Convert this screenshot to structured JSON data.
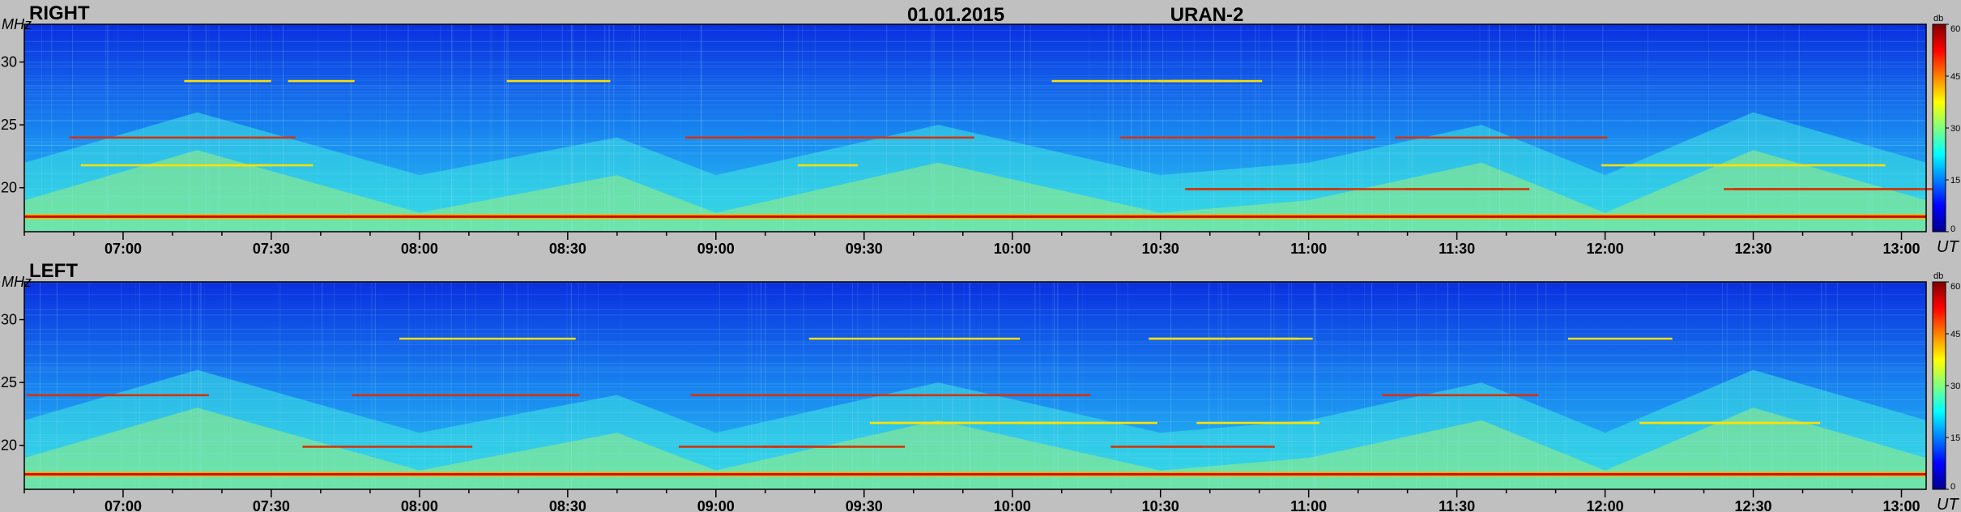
{
  "header": {
    "date": "01.01.2015",
    "instrument": "URAN-2"
  },
  "colors": {
    "background": "#c0c0c0",
    "colormap": [
      "#00008f",
      "#0000ff",
      "#0080ff",
      "#00ffff",
      "#80ff80",
      "#ffff00",
      "#ff8000",
      "#ff0000",
      "#800000"
    ]
  },
  "chart_data": [
    {
      "type": "heatmap",
      "title": "RIGHT",
      "ylabel": "MHz",
      "xlabel": "UT",
      "xlim": [
        "06:40",
        "13:05"
      ],
      "ylim": [
        16.5,
        33
      ],
      "x_ticks": [
        "07:00",
        "07:30",
        "08:00",
        "08:30",
        "09:00",
        "09:30",
        "10:00",
        "10:30",
        "11:00",
        "11:30",
        "12:00",
        "12:30",
        "13:00"
      ],
      "y_ticks": [
        20,
        25,
        30
      ],
      "colorbar": {
        "label": "db",
        "range": [
          0,
          60
        ],
        "ticks": [
          0,
          15,
          30,
          45,
          60
        ]
      },
      "features": {
        "persistent_lines_mhz": [
          17.7,
          19.9,
          21.8,
          24.0,
          28.5
        ],
        "ionospheric_envelope": [
          {
            "t": "06:40",
            "mhz": 22
          },
          {
            "t": "07:15",
            "mhz": 26
          },
          {
            "t": "08:00",
            "mhz": 21
          },
          {
            "t": "08:40",
            "mhz": 24
          },
          {
            "t": "09:00",
            "mhz": 21
          },
          {
            "t": "09:45",
            "mhz": 25
          },
          {
            "t": "10:30",
            "mhz": 21
          },
          {
            "t": "11:00",
            "mhz": 22
          },
          {
            "t": "11:35",
            "mhz": 25
          },
          {
            "t": "12:00",
            "mhz": 21
          },
          {
            "t": "12:30",
            "mhz": 26
          },
          {
            "t": "13:05",
            "mhz": 22
          }
        ]
      }
    },
    {
      "type": "heatmap",
      "title": "LEFT",
      "ylabel": "MHz",
      "xlabel": "UT",
      "xlim": [
        "06:40",
        "13:05"
      ],
      "ylim": [
        16.5,
        33
      ],
      "x_ticks": [
        "07:00",
        "07:30",
        "08:00",
        "08:30",
        "09:00",
        "09:30",
        "10:00",
        "10:30",
        "11:00",
        "11:30",
        "12:00",
        "12:30",
        "13:00"
      ],
      "y_ticks": [
        20,
        25,
        30
      ],
      "colorbar": {
        "label": "db",
        "range": [
          0,
          60
        ],
        "ticks": [
          0,
          15,
          30,
          45,
          60
        ]
      },
      "features": {
        "persistent_lines_mhz": [
          17.7,
          19.9,
          21.8,
          24.0,
          28.5
        ],
        "ionospheric_envelope": [
          {
            "t": "06:40",
            "mhz": 22
          },
          {
            "t": "07:15",
            "mhz": 26
          },
          {
            "t": "08:00",
            "mhz": 21
          },
          {
            "t": "08:40",
            "mhz": 24
          },
          {
            "t": "09:00",
            "mhz": 21
          },
          {
            "t": "09:45",
            "mhz": 25
          },
          {
            "t": "10:30",
            "mhz": 21
          },
          {
            "t": "11:00",
            "mhz": 22
          },
          {
            "t": "11:35",
            "mhz": 25
          },
          {
            "t": "12:00",
            "mhz": 21
          },
          {
            "t": "12:30",
            "mhz": 26
          },
          {
            "t": "13:05",
            "mhz": 22
          }
        ]
      }
    }
  ]
}
